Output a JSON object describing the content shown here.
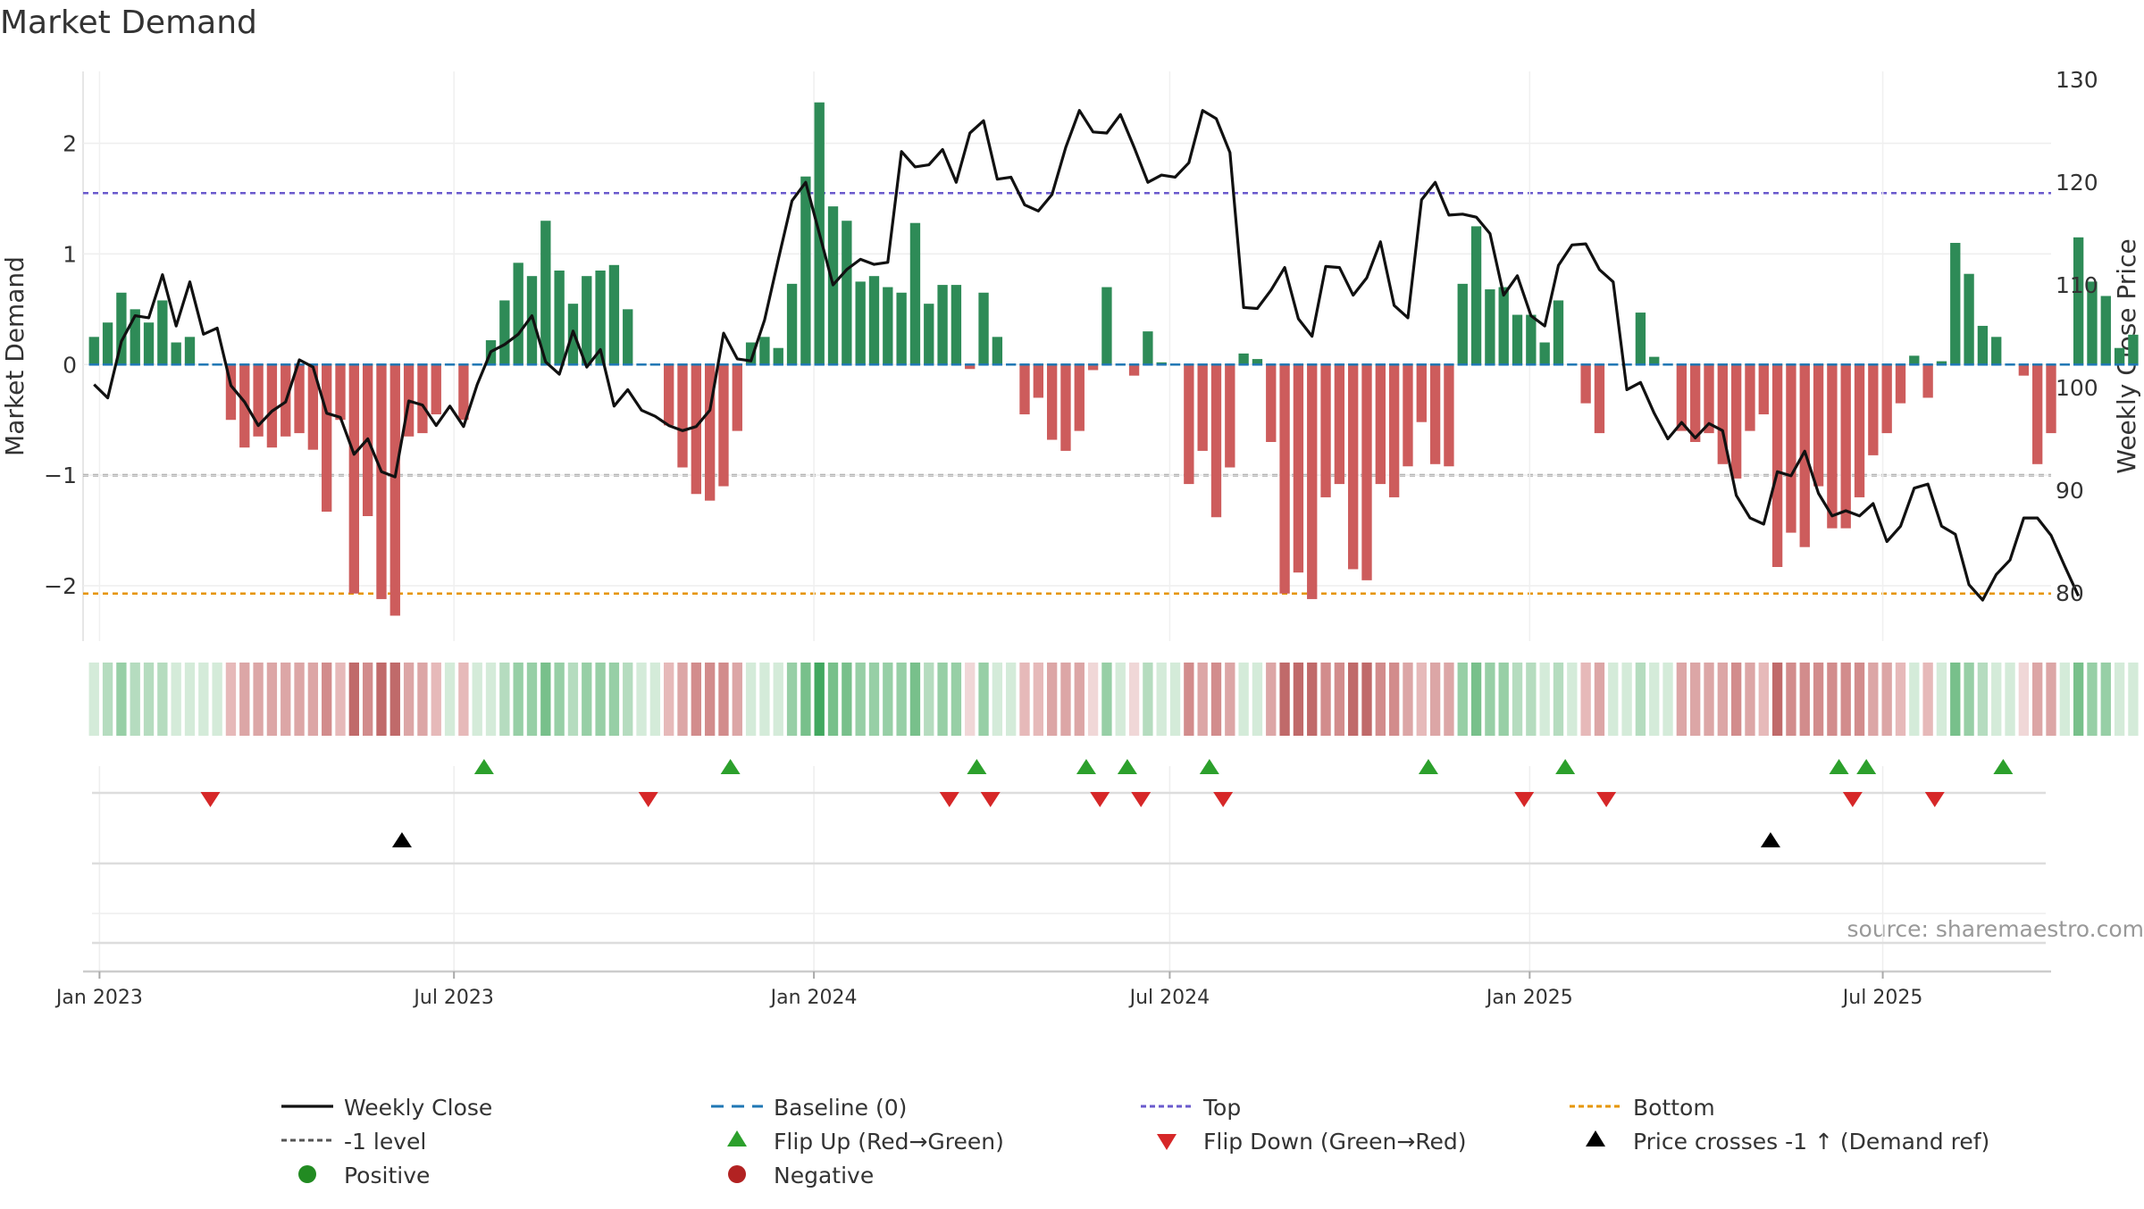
{
  "chart_data": {
    "type": "bar",
    "title": "Market Demand",
    "source_note": "source: sharemaestro.com",
    "ylabel": "Market Demand",
    "y2label": "Weekly Close Price",
    "ylim": [
      -2.5,
      2.65
    ],
    "y2lim": [
      75.3,
      130.8
    ],
    "yticks": [
      2,
      1,
      0,
      -1,
      -2
    ],
    "ytick_labels": [
      "2",
      "1",
      "0",
      "−1",
      "−2"
    ],
    "y2ticks": [
      130,
      120,
      110,
      100,
      90,
      80
    ],
    "y2tick_labels": [
      "130",
      "120",
      "110",
      "100",
      "90",
      "80"
    ],
    "x_range_weeks": [
      -0.8,
      143.0
    ],
    "xticks": [
      {
        "week": 0.4,
        "label": "Jan 2023"
      },
      {
        "week": 26.3,
        "label": "Jul 2023"
      },
      {
        "week": 52.6,
        "label": "Jan 2024"
      },
      {
        "week": 78.6,
        "label": "Jul 2024"
      },
      {
        "week": 104.9,
        "label": "Jan 2025"
      },
      {
        "week": 130.7,
        "label": "Jul 2025"
      }
    ],
    "ref_levels": {
      "top": 1.55,
      "minus_one": -1.0,
      "bottom": -2.07,
      "baseline": 0
    },
    "colors": {
      "positive_bar": "#2e8b57",
      "negative_bar": "#cd5c5c",
      "weekly_close": "#111111",
      "baseline": "#1f77b4",
      "top": "#6a5acd",
      "minus_one": "#555555",
      "bottom": "#e69500",
      "flip_up": "#2ca02c",
      "flip_down": "#d62728",
      "price_cross": "#000000",
      "positive_dot": "#228b22",
      "negative_dot": "#b22222"
    },
    "demand": [
      0.25,
      0.38,
      0.65,
      0.5,
      0.38,
      0.58,
      0.2,
      0.25,
      0,
      0,
      -0.5,
      -0.75,
      -0.65,
      -0.75,
      -0.65,
      -0.62,
      -0.77,
      -1.33,
      -0.5,
      -2.07,
      -1.37,
      -2.12,
      -2.27,
      -0.65,
      -0.62,
      -0.45,
      0,
      -0.5,
      0,
      0.22,
      0.58,
      0.92,
      0.8,
      1.3,
      0.85,
      0.55,
      0.8,
      0.85,
      0.9,
      0.5,
      0,
      0,
      -0.55,
      -0.93,
      -1.17,
      -1.23,
      -1.1,
      -0.6,
      0.2,
      0.25,
      0.15,
      0.73,
      1.7,
      2.37,
      1.43,
      1.3,
      0.75,
      0.8,
      0.7,
      0.65,
      1.28,
      0.55,
      0.72,
      0.72,
      -0.04,
      0.65,
      0.25,
      0,
      -0.45,
      -0.3,
      -0.68,
      -0.78,
      -0.6,
      -0.05,
      0.7,
      0,
      -0.1,
      0.3,
      0.02,
      0,
      -1.08,
      -0.78,
      -1.38,
      -0.93,
      0.1,
      0.05,
      -0.7,
      -2.07,
      -1.88,
      -2.12,
      -1.2,
      -1.08,
      -1.85,
      -1.95,
      -1.08,
      -1.2,
      -0.92,
      -0.52,
      -0.9,
      -0.92,
      0.73,
      1.25,
      0.68,
      0.7,
      0.45,
      0.45,
      0.2,
      0.58,
      0,
      -0.35,
      -0.62,
      0,
      0,
      0.47,
      0.07,
      0,
      -0.6,
      -0.7,
      -0.62,
      -0.9,
      -1.03,
      -0.6,
      -0.45,
      -1.83,
      -1.52,
      -1.65,
      -1.1,
      -1.48,
      -1.48,
      -1.2,
      -0.82,
      -0.62,
      -0.35,
      0.08,
      -0.3,
      0.03,
      1.1,
      0.82,
      0.35,
      0.25,
      0,
      -0.1,
      -0.9,
      -0.62,
      0,
      1.15,
      0.75,
      0.62,
      0.15,
      0.27
    ],
    "weekly_close": [
      100.3,
      99.0,
      104.5,
      107.0,
      106.8,
      111.0,
      106.0,
      110.3,
      105.2,
      105.8,
      100.2,
      98.6,
      96.3,
      97.7,
      98.6,
      102.7,
      102.0,
      97.5,
      97.1,
      93.5,
      95.0,
      91.8,
      91.3,
      98.7,
      98.3,
      96.3,
      98.2,
      96.2,
      100.3,
      103.5,
      104.2,
      105.2,
      107.0,
      102.5,
      101.3,
      105.5,
      102.0,
      103.7,
      98.2,
      99.8,
      97.8,
      97.2,
      96.3,
      95.8,
      96.2,
      97.8,
      105.3,
      102.8,
      102.6,
      106.6,
      112.5,
      118.2,
      120.0,
      115.0,
      110.0,
      111.5,
      112.5,
      112.0,
      112.2,
      123.0,
      121.5,
      121.7,
      123.2,
      120.0,
      124.8,
      126.0,
      120.3,
      120.5,
      117.8,
      117.2,
      118.8,
      123.4,
      127.0,
      124.9,
      124.8,
      126.6,
      123.4,
      120.0,
      120.7,
      120.5,
      121.9,
      127.0,
      126.2,
      122.9,
      107.8,
      107.7,
      109.5,
      111.7,
      106.7,
      105.0,
      111.8,
      111.7,
      109.0,
      110.7,
      114.2,
      108.0,
      106.8,
      118.3,
      120.0,
      116.8,
      116.9,
      116.6,
      115.0,
      109.0,
      110.9,
      107.0,
      106.0,
      111.9,
      113.9,
      114.0,
      111.5,
      110.3,
      99.8,
      100.5,
      97.5,
      95.0,
      96.6,
      95.1,
      96.5,
      95.8,
      89.5,
      87.3,
      86.7,
      91.8,
      91.4,
      93.8,
      89.7,
      87.5,
      88.0,
      87.5,
      88.7,
      85.0,
      86.5,
      90.2,
      90.6,
      86.5,
      85.7,
      80.8,
      79.3,
      81.8,
      83.2,
      87.3,
      87.3,
      85.6,
      82.6,
      79.7
    ],
    "colorstrip": [
      0.25,
      0.38,
      0.65,
      0.5,
      0.38,
      0.58,
      0.2,
      0.25,
      0,
      0,
      -0.5,
      -0.75,
      -0.65,
      -0.75,
      -0.65,
      -0.62,
      -0.77,
      -1.33,
      -0.5,
      -2.07,
      -1.37,
      -2.12,
      -2.27,
      -0.65,
      -0.62,
      -0.45,
      0,
      -0.5,
      0,
      0.22,
      0.58,
      0.92,
      0.8,
      1.3,
      0.85,
      0.55,
      0.8,
      0.85,
      0.9,
      0.5,
      0,
      0,
      -0.55,
      -0.93,
      -1.17,
      -1.23,
      -1.1,
      -0.6,
      0.2,
      0.25,
      0.15,
      0.73,
      1.7,
      2.37,
      1.43,
      1.3,
      0.75,
      0.8,
      0.7,
      0.65,
      1.28,
      0.55,
      0.72,
      0.72,
      -0.04,
      0.65,
      0.25,
      0,
      -0.45,
      -0.3,
      -0.68,
      -0.78,
      -0.6,
      -0.05,
      0.7,
      0,
      -0.1,
      0.3,
      0.02,
      0,
      -1.08,
      -0.78,
      -1.38,
      -0.93,
      0.1,
      0.05,
      -0.7,
      -2.07,
      -1.88,
      -2.12,
      -1.2,
      -1.08,
      -1.85,
      -1.95,
      -1.08,
      -1.2,
      -0.92,
      -0.52,
      -0.9,
      -0.92,
      0.73,
      1.25,
      0.68,
      0.7,
      0.45,
      0.45,
      0.2,
      0.58,
      0,
      -0.35,
      -0.62,
      0,
      0,
      0.47,
      0.07,
      0,
      -0.6,
      -0.7,
      -0.62,
      -0.9,
      -1.03,
      -0.6,
      -0.45,
      -1.83,
      -1.52,
      -1.65,
      -1.1,
      -1.48,
      -1.48,
      -1.2,
      -0.82,
      -0.62,
      -0.35,
      0.08,
      -0.3,
      0.03,
      1.1,
      0.82,
      0.35,
      0.25,
      0,
      -0.1,
      -0.9,
      -0.62,
      0,
      1.15,
      0.75,
      0.62,
      0.15,
      0.27
    ],
    "flip_up_weeks": [
      28.5,
      46.5,
      64.5,
      72.5,
      75.5,
      81.5,
      97.5,
      107.5,
      127.5,
      129.5,
      139.5
    ],
    "flip_down_weeks": [
      8.5,
      40.5,
      62.5,
      65.5,
      73.5,
      76.5,
      82.5,
      104.5,
      110.5,
      128.5,
      134.5
    ],
    "price_cross_weeks": [
      22.5,
      122.5
    ],
    "legend": {
      "weekly_close": "Weekly Close",
      "baseline": "Baseline (0)",
      "top": "Top",
      "bottom": "Bottom",
      "minus_one": "-1 level",
      "flip_up": "Flip Up (Red→Green)",
      "flip_down": "Flip Down (Green→Red)",
      "price_cross": "Price crosses -1 ↑ (Demand ref)",
      "positive": "Positive",
      "negative": "Negative"
    }
  }
}
